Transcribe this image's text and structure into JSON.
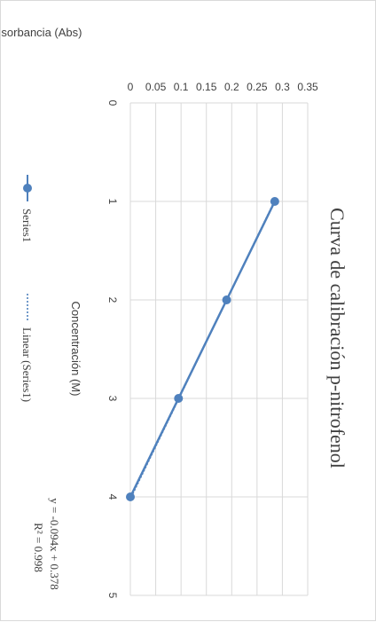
{
  "chart_data": {
    "type": "scatter",
    "title": "Curva de calibración p-nitrofenol",
    "xlabel": "Concentración (M)",
    "ylabel": "Absorbancia (Abs)",
    "xlim": [
      0,
      5
    ],
    "ylim": [
      0,
      0.35
    ],
    "x_ticks": [
      "0",
      "1",
      "2",
      "3",
      "4",
      "5"
    ],
    "y_ticks": [
      "0",
      "0.05",
      "0.1",
      "0.15",
      "0.2",
      "0.25",
      "0.3",
      "0.35"
    ],
    "grid": true,
    "series": [
      {
        "name": "Series1",
        "x": [
          1,
          2,
          3,
          4
        ],
        "y": [
          0.285,
          0.19,
          0.095,
          0.0
        ],
        "color": "#4f81bd",
        "style": "line-with-markers"
      },
      {
        "name": "Linear (Series1)",
        "type": "trendline",
        "slope": -0.094,
        "intercept": 0.378,
        "x_range": [
          1,
          4
        ],
        "color": "#4f81bd",
        "style": "dotted"
      }
    ],
    "annotations": {
      "equation": "y = -0.094x + 0.378",
      "r_squared": "R² = 0.998"
    },
    "legend_placement": "bottom"
  }
}
